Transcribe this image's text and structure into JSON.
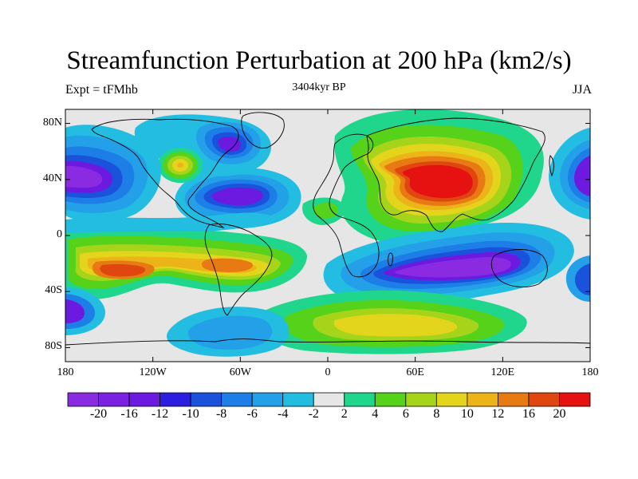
{
  "title": "Streamfunction Perturbation at 200 hPa (km2/s)",
  "left_string": "Expt = tFMhb",
  "center_string": "3404kyr BP",
  "right_string": "JJA",
  "y_ticks": [
    {
      "label": "80N",
      "lat": 80
    },
    {
      "label": "40N",
      "lat": 40
    },
    {
      "label": "0",
      "lat": 0
    },
    {
      "label": "40S",
      "lat": -40
    },
    {
      "label": "80S",
      "lat": -80
    }
  ],
  "x_ticks": [
    {
      "label": "180",
      "lon": -180
    },
    {
      "label": "120W",
      "lon": -120
    },
    {
      "label": "60W",
      "lon": -60
    },
    {
      "label": "0",
      "lon": 0
    },
    {
      "label": "60E",
      "lon": 60
    },
    {
      "label": "120E",
      "lon": 120
    },
    {
      "label": "180",
      "lon": 180
    }
  ],
  "colorbar": {
    "colors": [
      "#8a2be2",
      "#7b22e0",
      "#6c1ae0",
      "#2b1ee0",
      "#1a52dc",
      "#1c7ee6",
      "#24a0e8",
      "#22bde0",
      "#e6e6e6",
      "#1fd68c",
      "#56d21a",
      "#a6d41b",
      "#e2d51b",
      "#ecb418",
      "#e87a14",
      "#e0460f",
      "#e61212"
    ],
    "labels": [
      "-20",
      "-16",
      "-12",
      "-10",
      "-8",
      "-6",
      "-4",
      "-2",
      "2",
      "4",
      "6",
      "8",
      "10",
      "12",
      "16",
      "20"
    ]
  },
  "map_features": {
    "highs": [
      {
        "name": "asian-high",
        "lon": 78,
        "lat": 28,
        "value": 21
      },
      {
        "name": "south-pacific-high",
        "lon": -137,
        "lat": -28,
        "value": 14
      },
      {
        "name": "south-america-high",
        "lon": -62,
        "lat": -22,
        "value": 14
      },
      {
        "name": "north-america-small-high",
        "lon": -101,
        "lat": 40,
        "value": 11
      },
      {
        "name": "south-atlantic-band",
        "lon": 40,
        "lat": -58,
        "value": 8
      }
    ],
    "lows": [
      {
        "name": "indian-ocean-low",
        "lon": 90,
        "lat": -32,
        "value": -21
      },
      {
        "name": "north-atlantic-low",
        "lon": -65,
        "lat": 20,
        "value": -17
      },
      {
        "name": "north-pacific-low",
        "lon": -155,
        "lat": 35,
        "value": -18
      },
      {
        "name": "canada-low",
        "lon": -60,
        "lat": 55,
        "value": -14
      },
      {
        "name": "far-east-low",
        "lon": 172,
        "lat": 35,
        "value": -16
      },
      {
        "name": "south-pacific-edge-low",
        "lon": -178,
        "lat": -55,
        "value": -14
      },
      {
        "name": "antarctic-low",
        "lon": -55,
        "lat": -72,
        "value": -6
      }
    ]
  }
}
